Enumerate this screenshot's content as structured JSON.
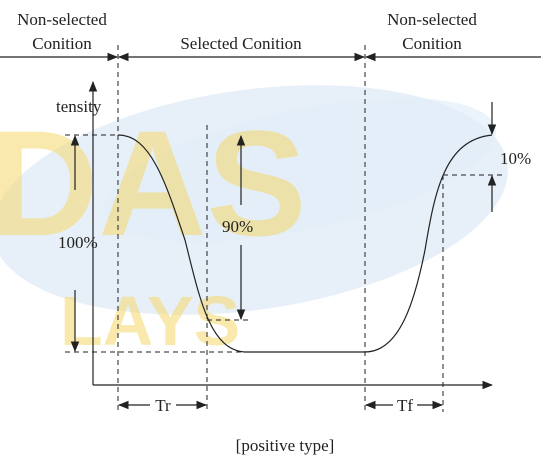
{
  "watermark": {
    "line1": "DAS",
    "line2": "LAYS"
  },
  "header": {
    "left": [
      "Non-selected",
      "Conition"
    ],
    "middle": "Selected Conition",
    "right": [
      "Non-selected",
      "Conition"
    ]
  },
  "axis_label": "tensity",
  "labels": {
    "full": "100%",
    "ninety": "90%",
    "ten": "10%",
    "rise": "Tr",
    "fall": "Tf"
  },
  "caption": "[positive type]"
}
